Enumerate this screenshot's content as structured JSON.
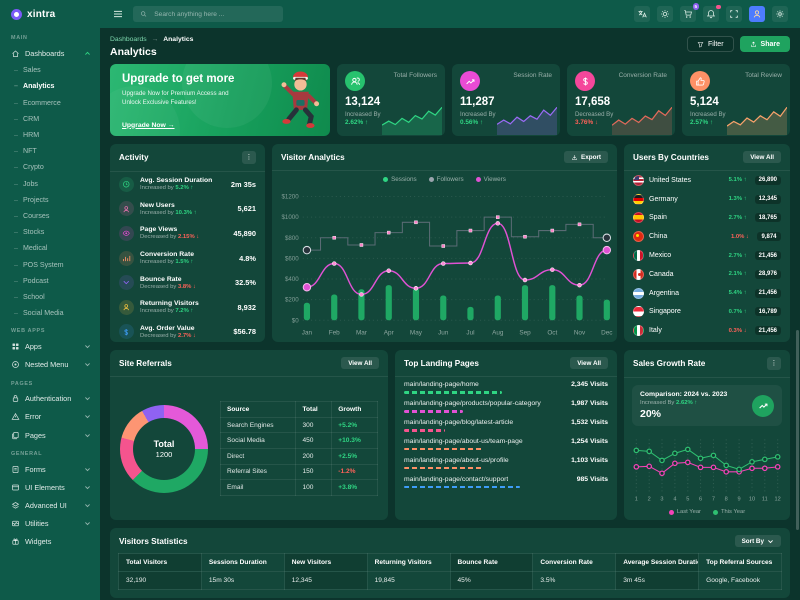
{
  "app": {
    "name": "xintra"
  },
  "header": {
    "search_placeholder": "Search anything here ...",
    "icons": [
      {
        "name": "translate"
      },
      {
        "name": "theme-sun"
      },
      {
        "name": "cart",
        "badge": "5"
      },
      {
        "name": "notifications",
        "dot": true
      },
      {
        "name": "fullscreen"
      },
      {
        "name": "avatar"
      },
      {
        "name": "settings"
      }
    ]
  },
  "sidebar": {
    "sections": [
      {
        "label": "MAIN",
        "items": [
          {
            "label": "Dashboards",
            "icon": "home",
            "expanded": true,
            "chevron": true,
            "children": [
              "Sales",
              "Analytics",
              "Ecommerce",
              "CRM",
              "HRM",
              "NFT",
              "Crypto",
              "Jobs",
              "Projects",
              "Courses",
              "Stocks",
              "Medical",
              "POS System",
              "Podcast",
              "School",
              "Social Media"
            ],
            "active_child": "Analytics"
          }
        ]
      },
      {
        "label": "WEB APPS",
        "items": [
          {
            "label": "Apps",
            "icon": "grid",
            "chevron": true
          },
          {
            "label": "Nested Menu",
            "icon": "nested",
            "chevron": true
          }
        ]
      },
      {
        "label": "PAGES",
        "items": [
          {
            "label": "Authentication",
            "icon": "lock",
            "chevron": true
          },
          {
            "label": "Error",
            "icon": "warning",
            "chevron": true
          },
          {
            "label": "Pages",
            "icon": "pages",
            "chevron": true
          }
        ]
      },
      {
        "label": "GENERAL",
        "items": [
          {
            "label": "Forms",
            "icon": "file",
            "chevron": true
          },
          {
            "label": "UI Elements",
            "icon": "box",
            "chevron": true
          },
          {
            "label": "Advanced UI",
            "icon": "layers",
            "chevron": true
          },
          {
            "label": "Utilities",
            "icon": "utilities",
            "chevron": true
          },
          {
            "label": "Widgets",
            "icon": "gift",
            "chevron": false
          }
        ]
      }
    ]
  },
  "page": {
    "breadcrumb_parent": "Dashboards",
    "breadcrumb_sep": "→",
    "breadcrumb_current": "Analytics",
    "title": "Analytics",
    "filter_label": "Filter",
    "share_label": "Share"
  },
  "banner": {
    "title": "Upgrade to get more",
    "subtitle": "Upgrade Now for Premium Access and Unlock Exclusive Features!",
    "cta": "Upgrade Now →"
  },
  "stat_cards": [
    {
      "label": "Total Followers",
      "value": "13,124",
      "change_label": "Increased By",
      "change": "2.62%",
      "direction": "up",
      "icon": "users",
      "icon_bg": "#27C26E"
    },
    {
      "label": "Session Rate",
      "value": "11,287",
      "change_label": "Increased By",
      "change": "0.56%",
      "direction": "up",
      "icon": "trend",
      "icon_bg": "#E94BD4"
    },
    {
      "label": "Conversion Rate",
      "value": "17,658",
      "change_label": "Decreased By",
      "change": "3.76%",
      "direction": "down",
      "icon": "dollar",
      "icon_bg": "#F5479B"
    },
    {
      "label": "Total Review",
      "value": "5,124",
      "change_label": "Increased By",
      "change": "2.57%",
      "direction": "up",
      "icon": "thumb",
      "icon_bg": "#FD9166"
    }
  ],
  "activity": {
    "title": "Activity",
    "items": [
      {
        "icon": "clock",
        "color": "#2FD583",
        "label": "Avg. Session Duration",
        "change_label": "Increased by",
        "change": "5.2%",
        "dir": "up",
        "value": "2m 35s"
      },
      {
        "icon": "user",
        "color": "#F472B6",
        "label": "New Users",
        "change_label": "Increased by",
        "change": "10.3%",
        "dir": "up",
        "value": "5,621"
      },
      {
        "icon": "eye",
        "color": "#E94BD4",
        "label": "Page Views",
        "change_label": "Decreased by",
        "change": "2.15%",
        "dir": "down",
        "value": "45,890"
      },
      {
        "icon": "chart",
        "color": "#FD9166",
        "label": "Conversion Rate",
        "change_label": "Increased by",
        "change": "1.5%",
        "dir": "up",
        "value": "4.8%"
      },
      {
        "icon": "chevdown",
        "color": "#8F62F2",
        "label": "Bounce Rate",
        "change_label": "Decreased by",
        "change": "3.8%",
        "dir": "down",
        "value": "32.5%"
      },
      {
        "icon": "user",
        "color": "#FFC940",
        "label": "Returning Visitors",
        "change_label": "Increased by",
        "change": "7.2%",
        "dir": "up",
        "value": "8,932"
      },
      {
        "icon": "dollar",
        "color": "#3E9DF8",
        "label": "Avg. Order Value",
        "change_label": "Decreased by",
        "change": "2.7%",
        "dir": "down",
        "value": "$56.78"
      }
    ]
  },
  "visitor_analytics": {
    "title": "Visitor Analytics",
    "export_label": "Export"
  },
  "users_by_countries": {
    "title": "Users By Countries",
    "view_all": "View All",
    "rows": [
      {
        "country": "United States",
        "code": "us",
        "change": "5.1%",
        "dir": "up",
        "value": "26,890"
      },
      {
        "country": "Germany",
        "code": "de",
        "change": "1.3%",
        "dir": "up",
        "value": "12,345"
      },
      {
        "country": "Spain",
        "code": "es",
        "change": "2.7%",
        "dir": "up",
        "value": "18,765"
      },
      {
        "country": "China",
        "code": "cn",
        "change": "1.0%",
        "dir": "down",
        "value": "9,874"
      },
      {
        "country": "Mexico",
        "code": "mx",
        "change": "2.7%",
        "dir": "up",
        "value": "21,456"
      },
      {
        "country": "Canada",
        "code": "ca",
        "change": "2.1%",
        "dir": "up",
        "value": "28,976"
      },
      {
        "country": "Argentina",
        "code": "ar",
        "change": "5.4%",
        "dir": "up",
        "value": "21,456"
      },
      {
        "country": "Singapore",
        "code": "sg",
        "change": "0.7%",
        "dir": "up",
        "value": "16,789"
      },
      {
        "country": "Italy",
        "code": "it",
        "change": "0.3%",
        "dir": "down",
        "value": "21,456"
      }
    ]
  },
  "site_referrals": {
    "title": "Site Referrals",
    "view_all": "View All",
    "center_label": "Total",
    "center_value": "1200",
    "table": {
      "headers": [
        "Source",
        "Total",
        "Growth"
      ],
      "rows": [
        {
          "source": "Search Engines",
          "total": "300",
          "growth": "+5.2%",
          "dir": "up"
        },
        {
          "source": "Social Media",
          "total": "450",
          "growth": "+10.3%",
          "dir": "up"
        },
        {
          "source": "Direct",
          "total": "200",
          "growth": "+2.5%",
          "dir": "up"
        },
        {
          "source": "Referral Sites",
          "total": "150",
          "growth": "-1.2%",
          "dir": "down"
        },
        {
          "source": "Email",
          "total": "100",
          "growth": "+3.8%",
          "dir": "up"
        }
      ]
    }
  },
  "top_landing_pages": {
    "title": "Top Landing Pages",
    "view_all": "View All",
    "rows": [
      {
        "path": "main/landing-page/home",
        "visits": "2,345 Visits",
        "color": "#2FD583",
        "bar_percent": 48
      },
      {
        "path": "main/landing-page/products/popular-category",
        "visits": "1,987 Visits",
        "color": "#E052D4",
        "bar_percent": 29
      },
      {
        "path": "main/landing-page/blog/latest-article",
        "visits": "1,532 Visits",
        "color": "#F5548E",
        "bar_percent": 20
      },
      {
        "path": "main/landing-page/about-us/team-page",
        "visits": "1,254 Visits",
        "color": "#FD9166",
        "bar_percent": 38
      },
      {
        "path": "main/landing-page/about-us/profile",
        "visits": "1,103 Visits",
        "color": "#FD9166",
        "bar_percent": 38
      },
      {
        "path": "main/landing-page/contact/support",
        "visits": "985 Visits",
        "color": "#3E9DF8",
        "bar_percent": 57
      }
    ]
  },
  "sales_growth": {
    "title": "Sales Growth Rate",
    "comparison": "Comparison: 2024 vs. 2023",
    "change_label": "Increased By",
    "change": "2.62%",
    "rate": "20%",
    "legend": [
      {
        "label": "Last Year",
        "color": "#F543B8"
      },
      {
        "label": "This Year",
        "color": "#2FBF71"
      }
    ]
  },
  "visitors_statistics": {
    "title": "Visitors Statistics",
    "sort_by": "Sort By",
    "headers": [
      "Total Visitors",
      "Sessions Duration",
      "New Visitors",
      "Returning Visitors",
      "Bounce Rate",
      "Conversion Rate",
      "Average Session Duration",
      "Top Referral Sources"
    ],
    "row": [
      "32,190",
      "15m 30s",
      "12,345",
      "19,845",
      "45%",
      "3.5%",
      "3m 45s",
      "Google, Facebook"
    ]
  },
  "chart_data": [
    {
      "id": "stat-card-sparklines",
      "type": "area",
      "series": [
        {
          "name": "Total Followers",
          "color": "#2FD583",
          "values": [
            28,
            42,
            30,
            52,
            38,
            62,
            50,
            78,
            64,
            92
          ]
        },
        {
          "name": "Session Rate",
          "color": "#9A6BF5",
          "values": [
            30,
            45,
            32,
            55,
            40,
            60,
            48,
            80,
            62,
            90
          ]
        },
        {
          "name": "Conversion Rate",
          "color": "#E06A5A",
          "values": [
            26,
            44,
            30,
            50,
            36,
            58,
            46,
            76,
            60,
            88
          ]
        },
        {
          "name": "Total Review",
          "color": "#F8A26B",
          "values": [
            24,
            40,
            28,
            52,
            38,
            60,
            46,
            74,
            58,
            90
          ]
        }
      ]
    },
    {
      "id": "visitor-analytics",
      "type": "mixed",
      "categories": [
        "Jan",
        "Feb",
        "Mar",
        "Apr",
        "May",
        "Jun",
        "Jul",
        "Aug",
        "Sep",
        "Oct",
        "Nov",
        "Dec"
      ],
      "ylim": [
        0,
        1200
      ],
      "yticks": [
        0,
        200,
        400,
        600,
        800,
        1000,
        1200
      ],
      "ytick_prefix": "$",
      "grid": "dotted",
      "legend_position": "top",
      "series": [
        {
          "name": "Sessions",
          "type": "bar",
          "color": "#1FA864",
          "legend_color": "#2FD583",
          "values": [
            170,
            250,
            300,
            340,
            310,
            240,
            130,
            240,
            340,
            340,
            240,
            200
          ]
        },
        {
          "name": "Followers",
          "type": "step",
          "color": "#5A6B74",
          "legend_color": "#9AA4AD",
          "marker_color": "#FB7FC6",
          "values": [
            680,
            800,
            730,
            850,
            950,
            720,
            870,
            1000,
            810,
            870,
            930,
            800
          ]
        },
        {
          "name": "Viewers",
          "type": "line",
          "color": "#E052D4",
          "legend_color": "#E052D4",
          "marker_color": "#FF8BD8",
          "values": [
            320,
            550,
            250,
            480,
            310,
            550,
            555,
            940,
            390,
            490,
            340,
            680
          ]
        }
      ]
    },
    {
      "id": "site-referrals",
      "type": "donut",
      "total": 1200,
      "center_label": "Total",
      "slices": [
        {
          "label": "Search Engines",
          "value": 300,
          "color": "#E459D9"
        },
        {
          "label": "Social Media",
          "value": 450,
          "color": "#1FA864"
        },
        {
          "label": "Direct",
          "value": 200,
          "color": "#F5548E"
        },
        {
          "label": "Referral Sites",
          "value": 150,
          "color": "#FD9573"
        },
        {
          "label": "Email",
          "value": 100,
          "color": "#8F62F2"
        }
      ]
    },
    {
      "id": "sales-growth",
      "type": "line",
      "x": [
        1,
        2,
        3,
        4,
        5,
        6,
        7,
        8,
        9,
        10,
        11,
        12
      ],
      "ylim": [
        0,
        100
      ],
      "grid": "dotted-vertical",
      "legend_position": "bottom",
      "series": [
        {
          "name": "Last Year",
          "color": "#F543B8",
          "values": [
            45,
            46,
            32,
            52,
            54,
            44,
            44,
            35,
            35,
            42,
            42,
            45
          ]
        },
        {
          "name": "This Year",
          "color": "#2FBF71",
          "values": [
            78,
            76,
            58,
            72,
            80,
            62,
            68,
            48,
            40,
            55,
            60,
            65
          ]
        }
      ]
    }
  ]
}
